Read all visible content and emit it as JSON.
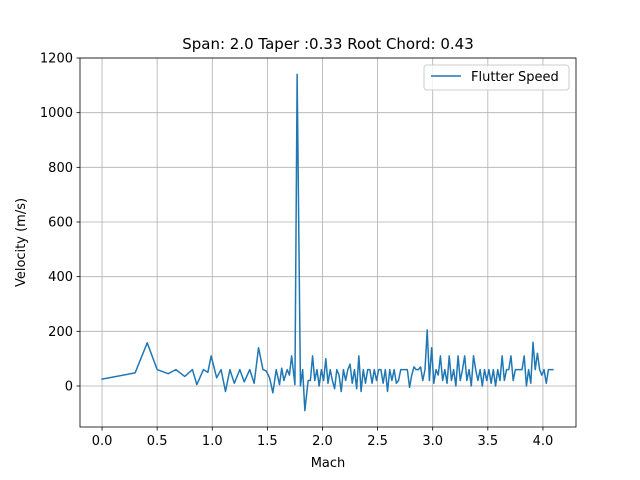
{
  "chart_data": {
    "type": "line",
    "title": "Span: 2.0 Taper :0.33 Root Chord: 0.43",
    "xlabel": "Mach",
    "ylabel": "Velocity (m/s)",
    "xlim": [
      -0.2,
      4.3
    ],
    "ylim": [
      -150,
      1200
    ],
    "xticks": [
      0.0,
      0.5,
      1.0,
      1.5,
      2.0,
      2.5,
      3.0,
      3.5,
      4.0
    ],
    "xtick_labels": [
      "0.0",
      "0.5",
      "1.0",
      "1.5",
      "2.0",
      "2.5",
      "3.0",
      "3.5",
      "4.0"
    ],
    "yticks": [
      0,
      200,
      400,
      600,
      800,
      1000,
      1200
    ],
    "ytick_labels": [
      "0",
      "200",
      "400",
      "600",
      "800",
      "1000",
      "1200"
    ],
    "grid": true,
    "legend": {
      "position": "top-right",
      "entries": [
        "Flutter Speed"
      ]
    },
    "series": [
      {
        "name": "Flutter Speed",
        "color": "#1f77b4",
        "x": [
          0.0,
          0.3,
          0.41,
          0.5,
          0.6,
          0.67,
          0.75,
          0.82,
          0.86,
          0.92,
          0.96,
          0.99,
          1.04,
          1.08,
          1.12,
          1.16,
          1.2,
          1.25,
          1.29,
          1.34,
          1.38,
          1.42,
          1.46,
          1.49,
          1.52,
          1.55,
          1.58,
          1.61,
          1.63,
          1.65,
          1.68,
          1.7,
          1.72,
          1.75,
          1.77,
          1.8,
          1.82,
          1.84,
          1.87,
          1.89,
          1.91,
          1.93,
          1.95,
          1.97,
          1.99,
          2.01,
          2.03,
          2.05,
          2.07,
          2.09,
          2.11,
          2.13,
          2.15,
          2.17,
          2.19,
          2.21,
          2.23,
          2.25,
          2.27,
          2.29,
          2.31,
          2.33,
          2.35,
          2.37,
          2.39,
          2.41,
          2.43,
          2.45,
          2.47,
          2.49,
          2.51,
          2.53,
          2.55,
          2.57,
          2.59,
          2.61,
          2.63,
          2.65,
          2.67,
          2.69,
          2.71,
          2.73,
          2.75,
          2.77,
          2.79,
          2.81,
          2.83,
          2.85,
          2.87,
          2.89,
          2.91,
          2.93,
          2.95,
          2.97,
          2.99,
          3.01,
          3.03,
          3.05,
          3.07,
          3.09,
          3.11,
          3.13,
          3.15,
          3.17,
          3.19,
          3.21,
          3.23,
          3.25,
          3.27,
          3.29,
          3.31,
          3.33,
          3.35,
          3.37,
          3.39,
          3.41,
          3.43,
          3.45,
          3.47,
          3.49,
          3.51,
          3.53,
          3.55,
          3.57,
          3.59,
          3.61,
          3.63,
          3.65,
          3.67,
          3.69,
          3.71,
          3.73,
          3.75,
          3.77,
          3.79,
          3.81,
          3.83,
          3.85,
          3.87,
          3.89,
          3.91,
          3.93,
          3.95,
          3.97,
          3.99,
          4.01,
          4.03,
          4.05,
          4.07,
          4.09
        ],
        "y": [
          25,
          48,
          158,
          60,
          45,
          60,
          35,
          60,
          5,
          60,
          50,
          110,
          30,
          60,
          -20,
          60,
          10,
          60,
          15,
          60,
          10,
          140,
          60,
          55,
          30,
          -25,
          60,
          5,
          65,
          20,
          60,
          40,
          110,
          5,
          1140,
          0,
          60,
          -90,
          20,
          20,
          110,
          20,
          60,
          0,
          60,
          20,
          100,
          10,
          60,
          20,
          -10,
          60,
          40,
          -20,
          60,
          20,
          60,
          80,
          10,
          60,
          -10,
          110,
          -20,
          60,
          10,
          60,
          60,
          10,
          60,
          20,
          60,
          60,
          10,
          60,
          -20,
          60,
          20,
          60,
          10,
          20,
          60,
          60,
          60,
          60,
          -5,
          40,
          70,
          60,
          60,
          70,
          20,
          60,
          205,
          20,
          140,
          10,
          60,
          40,
          110,
          20,
          60,
          10,
          110,
          20,
          60,
          0,
          110,
          20,
          60,
          110,
          20,
          60,
          0,
          110,
          60,
          20,
          60,
          0,
          60,
          20,
          60,
          10,
          60,
          0,
          60,
          20,
          110,
          20,
          60,
          60,
          110,
          20,
          60,
          60,
          60,
          60,
          110,
          0,
          60,
          10,
          160,
          60,
          120,
          60,
          40,
          60,
          10,
          60,
          60,
          60
        ]
      }
    ]
  }
}
